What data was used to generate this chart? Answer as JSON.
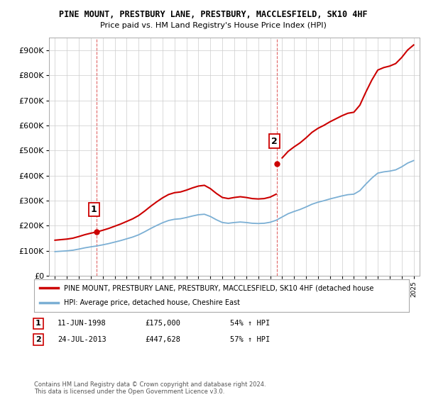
{
  "title1": "PINE MOUNT, PRESTBURY LANE, PRESTBURY, MACCLESFIELD, SK10 4HF",
  "title2": "Price paid vs. HM Land Registry's House Price Index (HPI)",
  "legend_line1": "PINE MOUNT, PRESTBURY LANE, PRESTBURY, MACCLESFIELD, SK10 4HF (detached house",
  "legend_line2": "HPI: Average price, detached house, Cheshire East",
  "annotation1_label": "1",
  "annotation1_date": "11-JUN-1998",
  "annotation1_price": "£175,000",
  "annotation1_hpi": "54% ↑ HPI",
  "annotation2_label": "2",
  "annotation2_date": "24-JUL-2013",
  "annotation2_price": "£447,628",
  "annotation2_hpi": "57% ↑ HPI",
  "footer": "Contains HM Land Registry data © Crown copyright and database right 2024.\nThis data is licensed under the Open Government Licence v3.0.",
  "red_color": "#cc0000",
  "blue_color": "#7bafd4",
  "grid_color": "#cccccc",
  "ylim": [
    0,
    950000
  ],
  "yticks": [
    0,
    100000,
    200000,
    300000,
    400000,
    500000,
    600000,
    700000,
    800000,
    900000
  ],
  "sale1_year": 1998.45,
  "sale1_price": 175000,
  "sale2_year": 2013.56,
  "sale2_price": 447628,
  "hpi_years": [
    1995,
    1995.5,
    1996,
    1996.5,
    1997,
    1997.5,
    1998,
    1998.5,
    1999,
    1999.5,
    2000,
    2000.5,
    2001,
    2001.5,
    2002,
    2002.5,
    2003,
    2003.5,
    2004,
    2004.5,
    2005,
    2005.5,
    2006,
    2006.5,
    2007,
    2007.5,
    2008,
    2008.5,
    2009,
    2009.5,
    2010,
    2010.5,
    2011,
    2011.5,
    2012,
    2012.5,
    2013,
    2013.5,
    2014,
    2014.5,
    2015,
    2015.5,
    2016,
    2016.5,
    2017,
    2017.5,
    2018,
    2018.5,
    2019,
    2019.5,
    2020,
    2020.5,
    2021,
    2021.5,
    2022,
    2022.5,
    2023,
    2023.5,
    2024,
    2024.5,
    2025
  ],
  "hpi_values": [
    97000,
    98500,
    100000,
    102500,
    107000,
    112000,
    116000,
    119500,
    124000,
    129000,
    135000,
    141000,
    148000,
    155000,
    164000,
    176000,
    189000,
    201000,
    212000,
    221000,
    226000,
    228000,
    233000,
    239000,
    244000,
    246000,
    237000,
    224000,
    213000,
    210000,
    213000,
    215000,
    213000,
    210000,
    209000,
    210000,
    214000,
    222000,
    235000,
    248000,
    257000,
    265000,
    275000,
    286000,
    294000,
    300000,
    307000,
    313000,
    319000,
    324000,
    326000,
    340000,
    366000,
    390000,
    410000,
    415000,
    418000,
    423000,
    435000,
    450000,
    460000
  ]
}
